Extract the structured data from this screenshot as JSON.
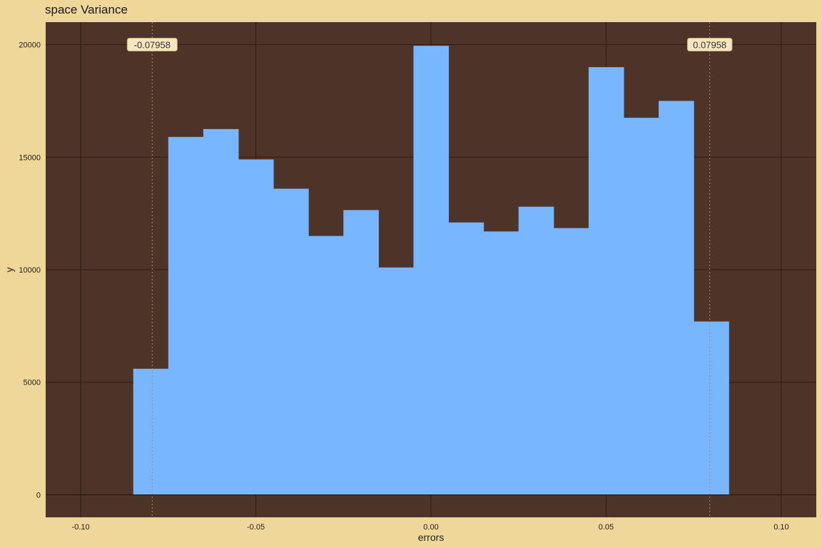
{
  "chart_data": {
    "type": "bar",
    "title": "space Variance",
    "xlabel": "errors",
    "ylabel": "y",
    "xlim": [
      -0.11,
      0.11
    ],
    "ylim": [
      -1000,
      21000
    ],
    "x_ticks": [
      -0.1,
      -0.05,
      0.0,
      0.05,
      0.1
    ],
    "x_tick_labels": [
      "-0.10",
      "-0.05",
      "0.00",
      "0.05",
      "0.10"
    ],
    "y_ticks": [
      0,
      5000,
      10000,
      15000,
      20000
    ],
    "y_tick_labels": [
      "0",
      "5000",
      "10000",
      "15000",
      "20000"
    ],
    "grid": true,
    "bin_edges": [
      -0.085,
      -0.075,
      -0.065,
      -0.055,
      -0.045,
      -0.035,
      -0.025,
      -0.015,
      -0.005,
      0.005,
      0.015,
      0.025,
      0.035,
      0.045,
      0.055,
      0.065,
      0.075,
      0.085
    ],
    "values": [
      5600,
      15900,
      16250,
      14900,
      13600,
      11500,
      12650,
      10100,
      19950,
      12100,
      11700,
      12800,
      11850,
      19000,
      16750,
      17500,
      7700
    ],
    "vlines": [
      {
        "x": -0.07958,
        "label": "-0.07958"
      },
      {
        "x": 0.07958,
        "label": "0.07958"
      }
    ],
    "colors": {
      "background": "#efd79a",
      "panel": "#4e3328",
      "grid": "#2f1c14",
      "bars": "#78b7ff",
      "vline": "#b08a6a",
      "label_fill": "#f5e6bf"
    }
  }
}
